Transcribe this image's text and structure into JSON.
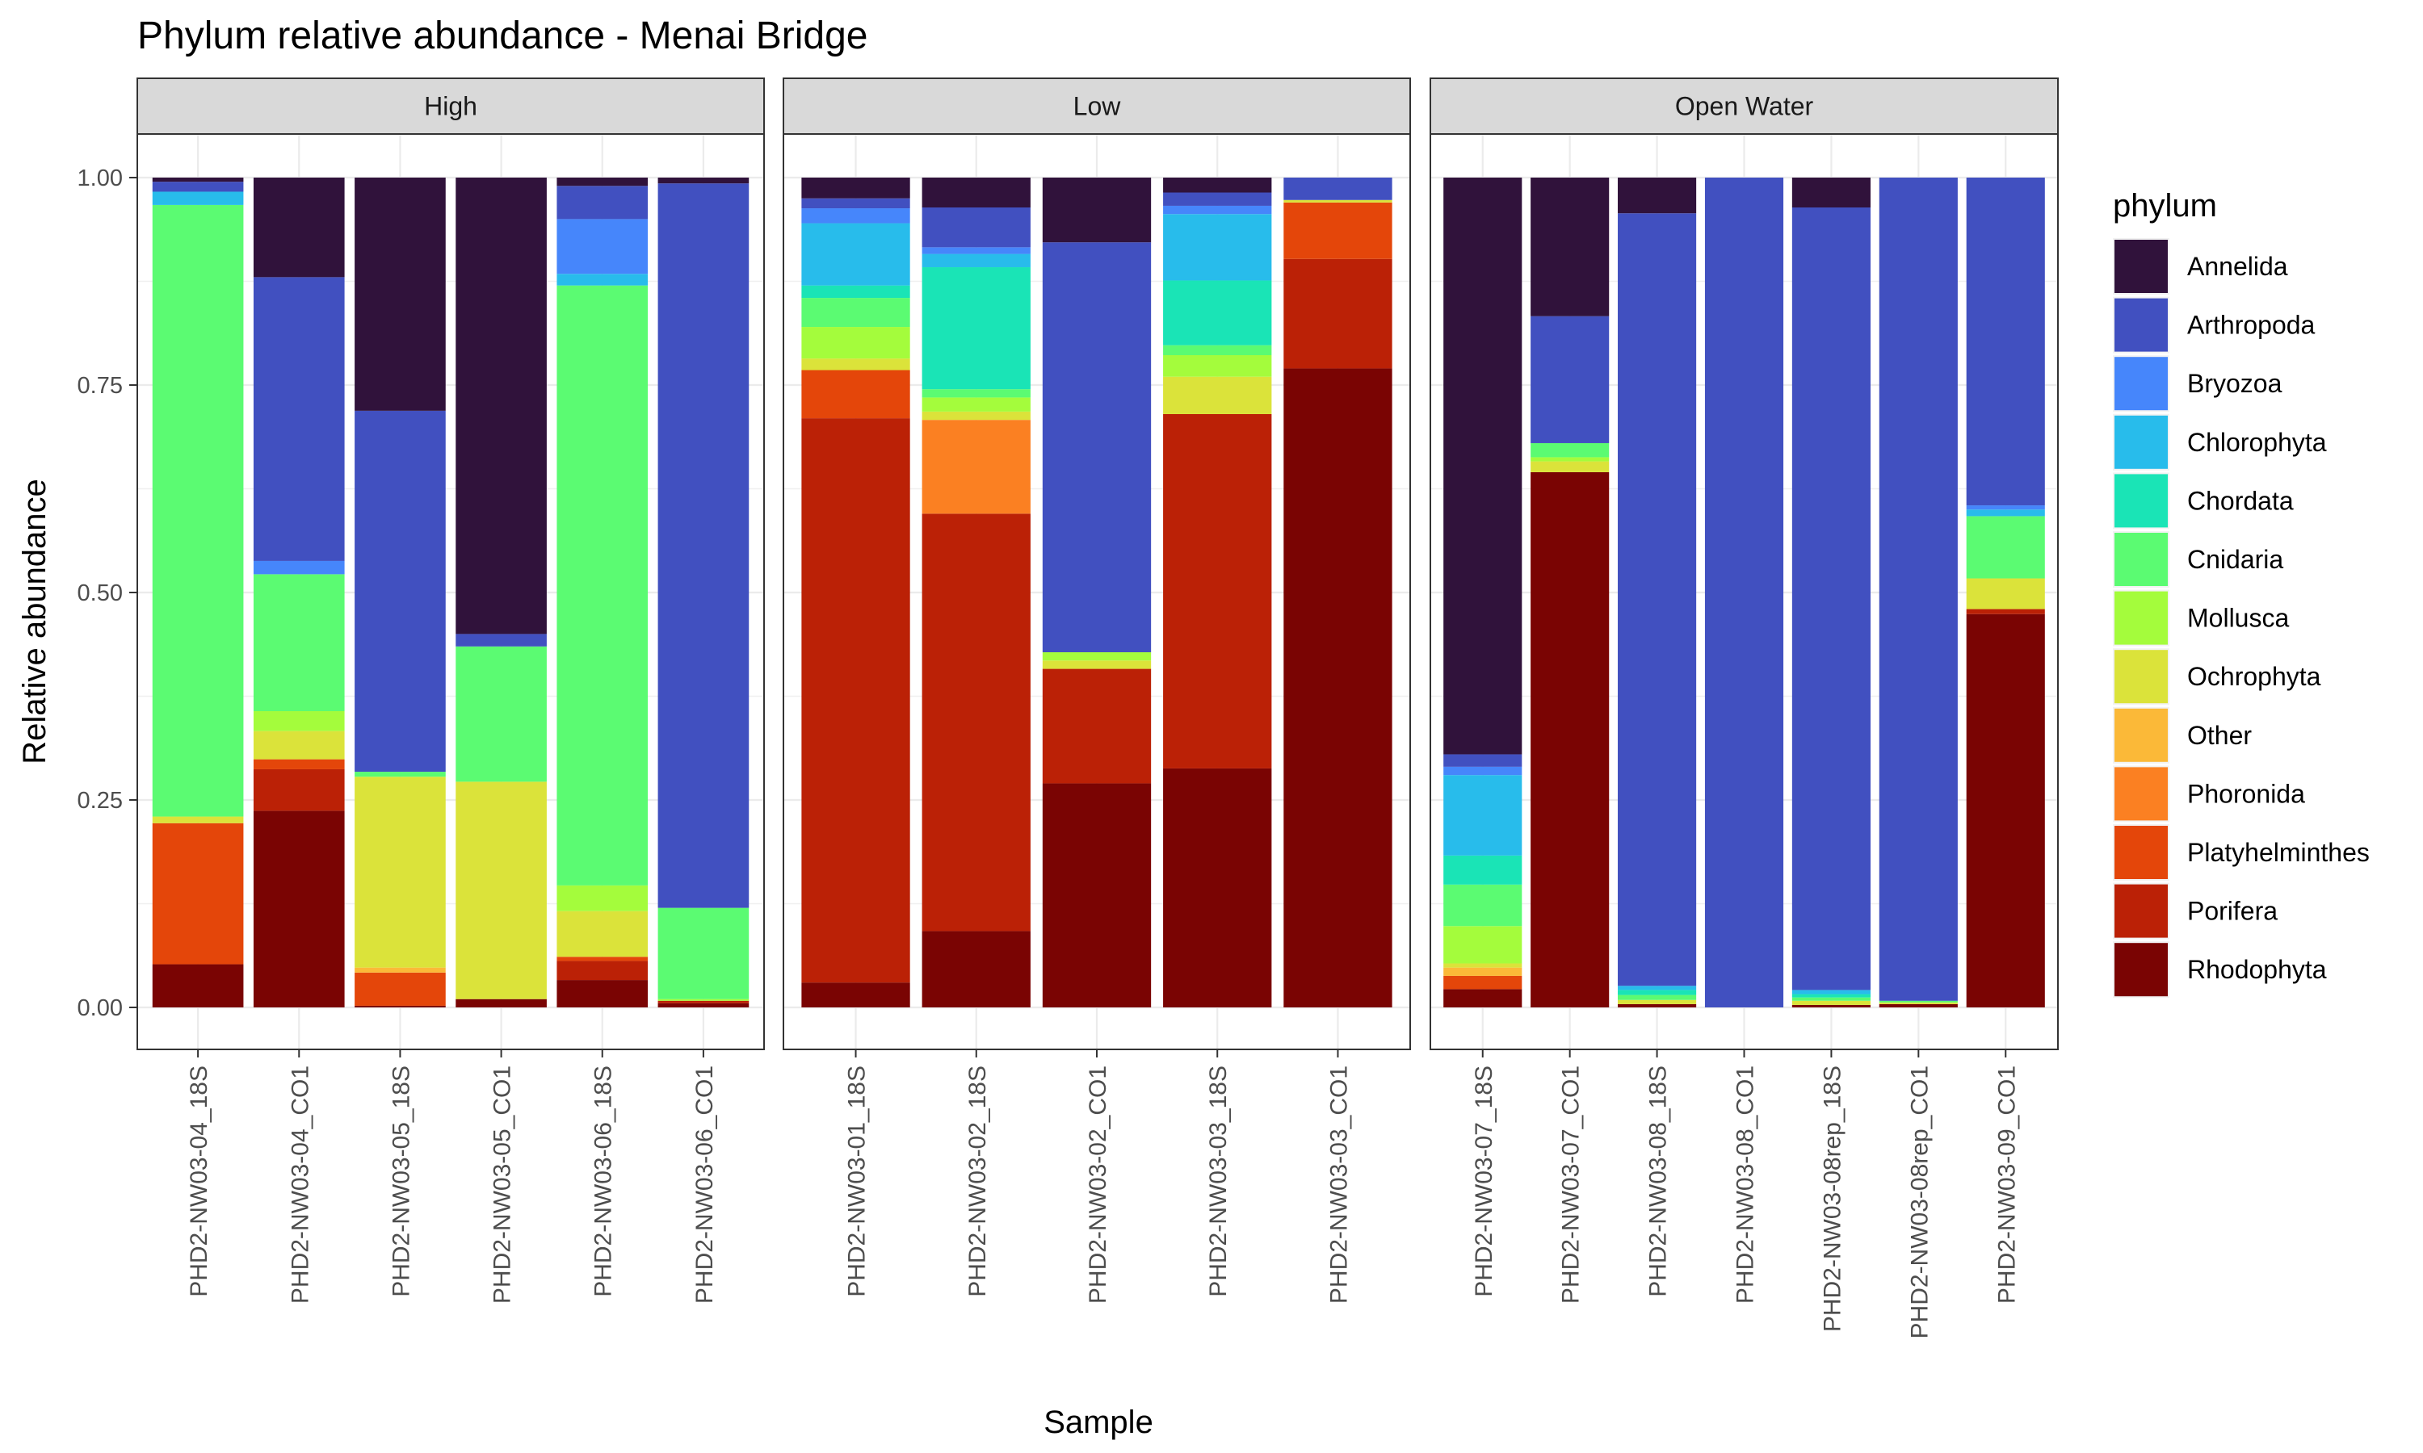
{
  "chart_data": {
    "type": "bar",
    "stacked": true,
    "title": "Phylum relative abundance - Menai Bridge",
    "xlabel": "Sample",
    "ylabel": "Relative abundance",
    "ylim": [
      0,
      1
    ],
    "yticks": [
      "0.00",
      "0.25",
      "0.50",
      "0.75",
      "1.00"
    ],
    "grid": true,
    "legend": {
      "title": "phylum",
      "position": "right",
      "entries": [
        "Annelida",
        "Arthropoda",
        "Bryozoa",
        "Chlorophyta",
        "Chordata",
        "Cnidaria",
        "Mollusca",
        "Ochrophyta",
        "Other",
        "Phoronida",
        "Platyhelminthes",
        "Porifera",
        "Rhodophyta"
      ]
    },
    "colors": {
      "Annelida": "#30123b",
      "Arthropoda": "#4150c0",
      "Bryozoa": "#4686fb",
      "Chlorophyta": "#28bceb",
      "Chordata": "#1ae4b6",
      "Cnidaria": "#5bfb72",
      "Mollusca": "#a4fc3c",
      "Ochrophyta": "#dbe33a",
      "Other": "#fbb938",
      "Phoronida": "#fb8022",
      "Platyhelminthes": "#e4460a",
      "Porifera": "#bb2106",
      "Rhodophyta": "#7a0403"
    },
    "stack_order_bottom_to_top": [
      "Rhodophyta",
      "Porifera",
      "Platyhelminthes",
      "Phoronida",
      "Other",
      "Ochrophyta",
      "Mollusca",
      "Cnidaria",
      "Chordata",
      "Chlorophyta",
      "Bryozoa",
      "Arthropoda",
      "Annelida"
    ],
    "facets": [
      {
        "name": "High",
        "samples": [
          {
            "sample": "PHD2-NW03-04_18S",
            "values": {
              "Rhodophyta": 0.052,
              "Platyhelminthes": 0.17,
              "Ochrophyta": 0.008,
              "Cnidaria": 0.737,
              "Chlorophyta": 0.016,
              "Arthropoda": 0.012,
              "Annelida": 0.005
            }
          },
          {
            "sample": "PHD2-NW03-04_CO1",
            "values": {
              "Rhodophyta": 0.237,
              "Porifera": 0.05,
              "Platyhelminthes": 0.012,
              "Ochrophyta": 0.034,
              "Mollusca": 0.024,
              "Cnidaria": 0.165,
              "Bryozoa": 0.016,
              "Arthropoda": 0.342,
              "Annelida": 0.12
            }
          },
          {
            "sample": "PHD2-NW03-05_18S",
            "values": {
              "Rhodophyta": 0.002,
              "Platyhelminthes": 0.04,
              "Other": 0.006,
              "Ochrophyta": 0.23,
              "Cnidaria": 0.006,
              "Arthropoda": 0.435,
              "Annelida": 0.281
            }
          },
          {
            "sample": "PHD2-NW03-05_CO1",
            "values": {
              "Rhodophyta": 0.01,
              "Ochrophyta": 0.262,
              "Cnidaria": 0.163,
              "Arthropoda": 0.015,
              "Annelida": 0.55
            }
          },
          {
            "sample": "PHD2-NW03-06_18S",
            "values": {
              "Rhodophyta": 0.033,
              "Porifera": 0.023,
              "Platyhelminthes": 0.005,
              "Ochrophyta": 0.055,
              "Mollusca": 0.031,
              "Cnidaria": 0.723,
              "Chlorophyta": 0.014,
              "Bryozoa": 0.066,
              "Arthropoda": 0.04,
              "Annelida": 0.01
            }
          },
          {
            "sample": "PHD2-NW03-06_CO1",
            "values": {
              "Rhodophyta": 0.005,
              "Porifera": 0.003,
              "Mollusca": 0.002,
              "Cnidaria": 0.11,
              "Arthropoda": 0.873,
              "Annelida": 0.007
            }
          }
        ]
      },
      {
        "name": "Low",
        "samples": [
          {
            "sample": "PHD2-NW03-01_18S",
            "values": {
              "Rhodophyta": 0.03,
              "Porifera": 0.68,
              "Platyhelminthes": 0.058,
              "Ochrophyta": 0.014,
              "Mollusca": 0.038,
              "Cnidaria": 0.035,
              "Chordata": 0.015,
              "Chlorophyta": 0.075,
              "Bryozoa": 0.018,
              "Arthropoda": 0.012,
              "Annelida": 0.025
            }
          },
          {
            "sample": "PHD2-NW03-02_18S",
            "values": {
              "Rhodophyta": 0.092,
              "Porifera": 0.503,
              "Phoronida": 0.113,
              "Ochrophyta": 0.01,
              "Mollusca": 0.017,
              "Cnidaria": 0.01,
              "Chordata": 0.147,
              "Chlorophyta": 0.016,
              "Bryozoa": 0.008,
              "Arthropoda": 0.048,
              "Annelida": 0.036
            }
          },
          {
            "sample": "PHD2-NW03-02_CO1",
            "values": {
              "Rhodophyta": 0.27,
              "Porifera": 0.138,
              "Ochrophyta": 0.01,
              "Mollusca": 0.01,
              "Arthropoda": 0.494,
              "Annelida": 0.078
            }
          },
          {
            "sample": "PHD2-NW03-03_18S",
            "values": {
              "Rhodophyta": 0.288,
              "Porifera": 0.427,
              "Ochrophyta": 0.045,
              "Mollusca": 0.026,
              "Cnidaria": 0.012,
              "Chordata": 0.078,
              "Chlorophyta": 0.08,
              "Bryozoa": 0.01,
              "Arthropoda": 0.016,
              "Annelida": 0.018
            }
          },
          {
            "sample": "PHD2-NW03-03_CO1",
            "values": {
              "Rhodophyta": 0.77,
              "Porifera": 0.132,
              "Platyhelminthes": 0.068,
              "Ochrophyta": 0.003,
              "Arthropoda": 0.027
            }
          }
        ]
      },
      {
        "name": "Open Water",
        "samples": [
          {
            "sample": "PHD2-NW03-07_18S",
            "values": {
              "Rhodophyta": 0.022,
              "Platyhelminthes": 0.016,
              "Other": 0.01,
              "Ochrophyta": 0.005,
              "Mollusca": 0.045,
              "Cnidaria": 0.05,
              "Chordata": 0.035,
              "Chlorophyta": 0.097,
              "Bryozoa": 0.01,
              "Arthropoda": 0.015,
              "Annelida": 0.695
            }
          },
          {
            "sample": "PHD2-NW03-07_CO1",
            "values": {
              "Rhodophyta": 0.645,
              "Ochrophyta": 0.013,
              "Mollusca": 0.005,
              "Cnidaria": 0.017,
              "Arthropoda": 0.153,
              "Annelida": 0.167
            }
          },
          {
            "sample": "PHD2-NW03-08_18S",
            "values": {
              "Rhodophyta": 0.004,
              "Ochrophyta": 0.005,
              "Cnidaria": 0.006,
              "Chordata": 0.006,
              "Chlorophyta": 0.005,
              "Arthropoda": 0.931,
              "Annelida": 0.043
            }
          },
          {
            "sample": "PHD2-NW03-08_CO1",
            "values": {
              "Arthropoda": 1.0
            }
          },
          {
            "sample": "PHD2-NW03-08rep_18S",
            "values": {
              "Rhodophyta": 0.003,
              "Ochrophyta": 0.005,
              "Cnidaria": 0.004,
              "Chordata": 0.004,
              "Chlorophyta": 0.005,
              "Arthropoda": 0.943,
              "Annelida": 0.036
            }
          },
          {
            "sample": "PHD2-NW03-08rep_CO1",
            "values": {
              "Rhodophyta": 0.004,
              "Ochrophyta": 0.002,
              "Cnidaria": 0.002,
              "Arthropoda": 0.992
            }
          },
          {
            "sample": "PHD2-NW03-09_CO1",
            "values": {
              "Rhodophyta": 0.474,
              "Porifera": 0.006,
              "Ochrophyta": 0.037,
              "Cnidaria": 0.075,
              "Chlorophyta": 0.008,
              "Bryozoa": 0.005,
              "Arthropoda": 0.395
            }
          }
        ]
      }
    ]
  }
}
